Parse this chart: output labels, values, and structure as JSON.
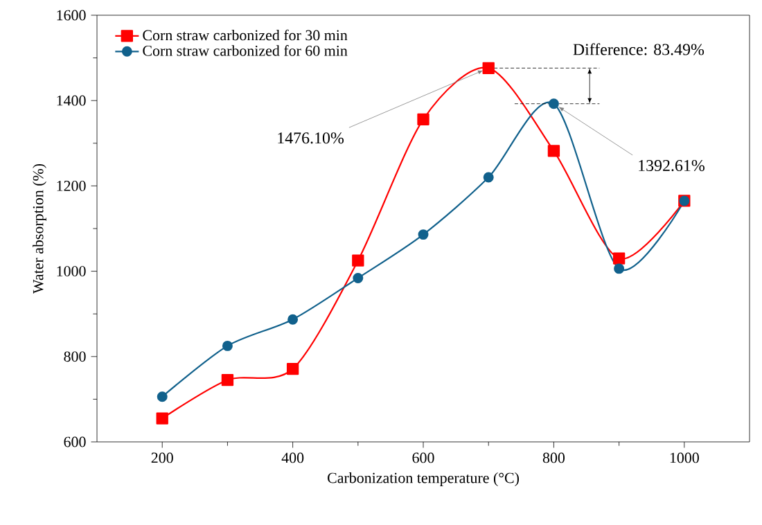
{
  "chart_data": {
    "type": "line",
    "xlabel": "Carbonization temperature (°C)",
    "ylabel": "Water absorption (%)",
    "x": [
      200,
      300,
      400,
      500,
      600,
      700,
      800,
      900,
      1000
    ],
    "series": [
      {
        "name": "Corn straw carbonized for 30 min",
        "color": "#ff0000",
        "marker": "square",
        "values": [
          655,
          745,
          771,
          1025,
          1356,
          1476.1,
          1282,
          1030,
          1165
        ]
      },
      {
        "name": "Corn straw carbonized for 60 min",
        "color": "#11618c",
        "marker": "circle",
        "values": [
          706,
          825,
          887,
          984,
          1086,
          1220,
          1392.61,
          1006,
          1165
        ]
      }
    ],
    "xlim": [
      100,
      1100
    ],
    "xticks": [
      200,
      400,
      600,
      800,
      1000
    ],
    "ylim": [
      600,
      1600
    ],
    "yticks": [
      600,
      800,
      1000,
      1200,
      1400,
      1600
    ],
    "legend": "top left",
    "grid": false,
    "line_style": "solid",
    "ref_lines": [
      {
        "axis": "y",
        "value": 1476.1,
        "line_style": "dashed",
        "color": "#000000"
      },
      {
        "axis": "y",
        "value": 1392.61,
        "line_style": "dashed",
        "color": "#000000"
      }
    ],
    "annotations": [
      "Difference: 83.49%",
      {
        "text": "1476.10%",
        "x": 700,
        "y": 1476.1
      },
      {
        "text": "1392.61%",
        "x": 800,
        "y": 1392.61
      }
    ]
  }
}
